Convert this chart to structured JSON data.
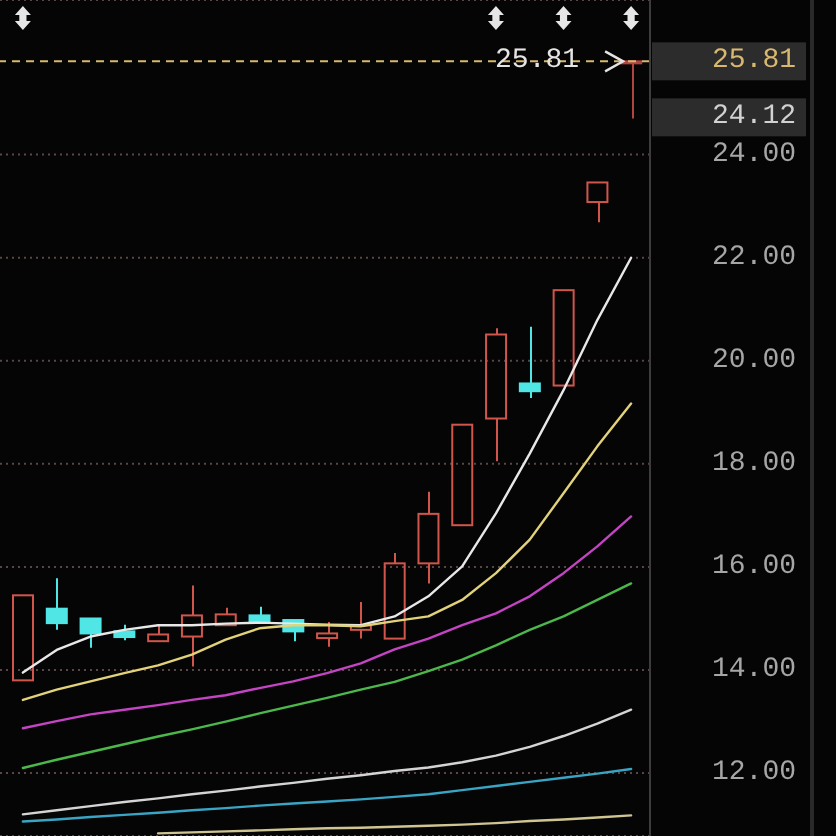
{
  "chart_data": {
    "type": "candlestick",
    "categories": [
      null,
      null,
      null,
      null,
      null,
      null,
      null,
      null,
      null,
      null,
      null,
      null,
      null,
      null,
      null,
      null,
      null,
      null,
      null
    ],
    "ohlc": [
      [
        13.8,
        15.45,
        13.8,
        15.45
      ],
      [
        15.19,
        15.78,
        14.78,
        14.91
      ],
      [
        15.0,
        15.0,
        14.43,
        14.71
      ],
      [
        14.75,
        14.88,
        14.58,
        14.64
      ],
      [
        14.56,
        14.87,
        14.56,
        14.69
      ],
      [
        14.65,
        15.64,
        14.07,
        15.06
      ],
      [
        14.87,
        15.21,
        14.87,
        15.08
      ],
      [
        15.06,
        15.23,
        14.94,
        14.94
      ],
      [
        14.97,
        14.97,
        14.56,
        14.75
      ],
      [
        14.62,
        14.93,
        14.45,
        14.71
      ],
      [
        14.78,
        15.32,
        14.61,
        14.87
      ],
      [
        14.61,
        16.27,
        14.61,
        16.07
      ],
      [
        16.07,
        17.46,
        15.68,
        17.03
      ],
      [
        16.81,
        18.76,
        16.81,
        18.76
      ],
      [
        18.88,
        20.63,
        18.05,
        20.51
      ],
      [
        19.56,
        20.66,
        19.28,
        19.41
      ],
      [
        19.52,
        21.37,
        19.52,
        21.37
      ],
      [
        23.08,
        23.46,
        22.69,
        23.46
      ],
      [
        25.81,
        25.81,
        24.7,
        25.81
      ]
    ],
    "colors": [
      "#d0564c",
      "#50e6e6",
      "#50e6e6",
      "#50e6e6",
      "#d0564c",
      "#d0564c",
      "#d0564c",
      "#50e6e6",
      "#50e6e6",
      "#d0564c",
      "#d0564c",
      "#d0564c",
      "#d0564c",
      "#d0564c",
      "#d0564c",
      "#50e6e6",
      "#d0564c",
      "#d0564c",
      "#b04440"
    ],
    "series": [
      {
        "type": "line",
        "color": "#e8e8e8",
        "values": [
          13.95,
          14.39,
          14.65,
          14.78,
          14.87,
          14.87,
          14.9,
          14.92,
          14.9,
          14.88,
          14.87,
          15.04,
          15.43,
          16.01,
          17.04,
          18.2,
          19.43,
          20.79,
          22.0
        ]
      },
      {
        "type": "line",
        "color": "#e2d27a",
        "values": [
          13.42,
          13.62,
          13.78,
          13.94,
          14.09,
          14.3,
          14.59,
          14.81,
          14.87,
          14.87,
          14.85,
          14.95,
          15.04,
          15.36,
          15.88,
          16.53,
          17.43,
          18.34,
          19.17
        ]
      },
      {
        "type": "line",
        "color": "#c444c4",
        "values": [
          12.87,
          13.01,
          13.14,
          13.23,
          13.32,
          13.42,
          13.51,
          13.65,
          13.78,
          13.94,
          14.13,
          14.4,
          14.61,
          14.87,
          15.1,
          15.43,
          15.88,
          16.4,
          16.98
        ]
      },
      {
        "type": "line",
        "color": "#4cb84c",
        "values": [
          12.1,
          12.26,
          12.41,
          12.56,
          12.71,
          12.85,
          13.0,
          13.16,
          13.31,
          13.46,
          13.62,
          13.77,
          13.98,
          14.2,
          14.48,
          14.78,
          15.04,
          15.36,
          15.68
        ]
      },
      {
        "type": "line",
        "color": "#d4d4d4",
        "values": [
          11.2,
          11.28,
          11.36,
          11.44,
          11.51,
          11.59,
          11.66,
          11.74,
          11.81,
          11.89,
          11.96,
          12.04,
          12.11,
          12.21,
          12.34,
          12.51,
          12.72,
          12.96,
          13.23
        ]
      },
      {
        "type": "line",
        "color": "#3aa4c4",
        "values": [
          11.06,
          11.1,
          11.15,
          11.19,
          11.23,
          11.28,
          11.32,
          11.37,
          11.41,
          11.45,
          11.49,
          11.54,
          11.59,
          11.67,
          11.75,
          11.83,
          11.91,
          11.99,
          12.08
        ]
      },
      {
        "type": "line",
        "color": "#cfc592",
        "values": [
          null,
          null,
          null,
          null,
          10.83,
          10.85,
          10.87,
          10.89,
          10.91,
          10.93,
          10.94,
          10.96,
          10.98,
          11.0,
          11.03,
          11.07,
          11.1,
          11.14,
          11.18
        ]
      }
    ],
    "ylim": [
      10.78,
      27.0
    ],
    "yticks": [
      {
        "value": 12,
        "label": "12.00"
      },
      {
        "value": 14,
        "label": "14.00"
      },
      {
        "value": 16,
        "label": "16.00"
      },
      {
        "value": 18,
        "label": "18.00"
      },
      {
        "value": 20,
        "label": "20.00"
      },
      {
        "value": 22,
        "label": "22.00"
      },
      {
        "value": 24,
        "label": "24.00"
      }
    ],
    "grid": "y",
    "tick_labels": "y",
    "marker": "none",
    "ref_lines": [
      {
        "axis": "y",
        "value": 25.81,
        "label": "25.81",
        "color": "#d8b870",
        "line_style": "dashed"
      }
    ],
    "annotations": [
      {
        "text": "25.81",
        "y": 25.81
      },
      "24.12"
    ]
  }
}
